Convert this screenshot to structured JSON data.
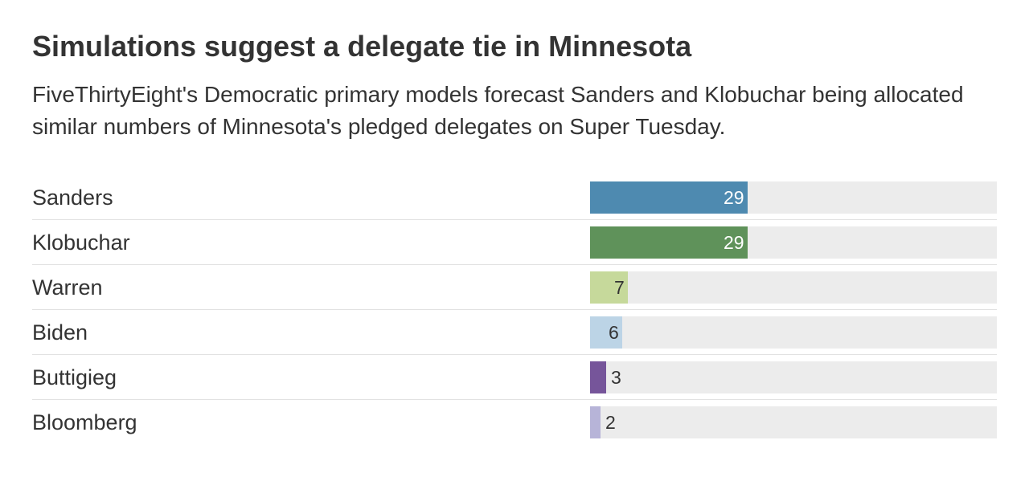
{
  "header": {
    "title": "Simulations suggest a delegate tie in Minnesota",
    "subtitle": "FiveThirtyEight's Democratic primary models forecast Sanders and Klobuchar being allocated similar numbers of Minnesota's pledged delegates on Super Tuesday."
  },
  "chart_data": {
    "type": "bar",
    "orientation": "horizontal",
    "title": "Simulations suggest a delegate tie in Minnesota",
    "subtitle": "FiveThirtyEight's Democratic primary models forecast Sanders and Klobuchar being allocated similar numbers of Minnesota's pledged delegates on Super Tuesday.",
    "xlim": [
      0,
      75
    ],
    "grid": false,
    "legend": "none",
    "categories": [
      "Sanders",
      "Klobuchar",
      "Warren",
      "Biden",
      "Buttigieg",
      "Bloomberg"
    ],
    "values": [
      29,
      29,
      7,
      6,
      3,
      2
    ],
    "colors": [
      "#4e8ab0",
      "#5f925a",
      "#c6d99b",
      "#bcd4e6",
      "#76559a",
      "#b7b4d8"
    ],
    "label_colors": [
      "#ffffff",
      "#ffffff",
      "#333333",
      "#333333",
      "#333333",
      "#333333"
    ],
    "track_color": "#ececec"
  }
}
